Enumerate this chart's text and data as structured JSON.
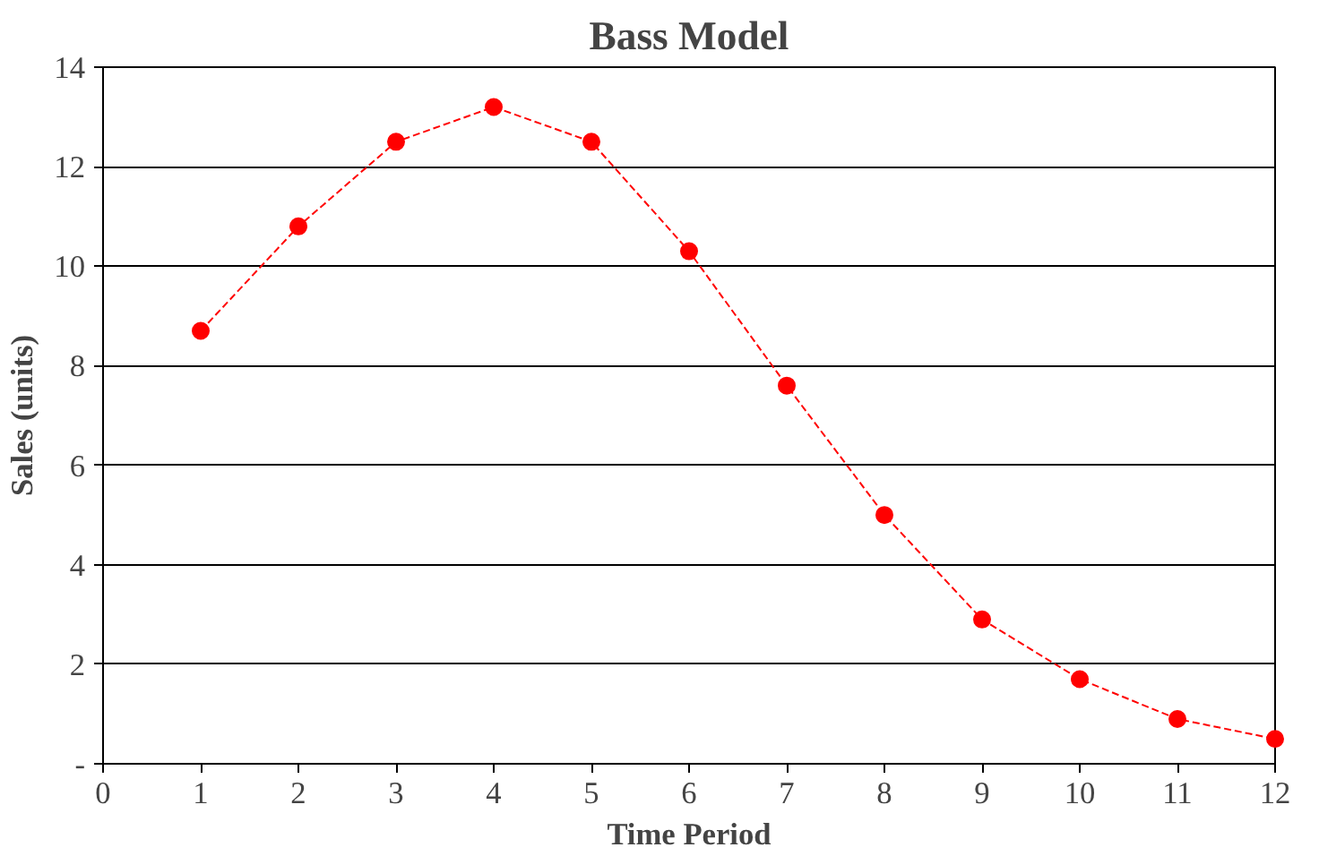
{
  "chart_data": {
    "type": "line",
    "title": "Bass Model",
    "xlabel": "Time Period",
    "ylabel": "Sales (units)",
    "x": [
      1,
      2,
      3,
      4,
      5,
      6,
      7,
      8,
      9,
      10,
      11,
      12
    ],
    "series": [
      {
        "color": "#ff0000",
        "values": [
          8.7,
          10.8,
          12.5,
          13.2,
          12.5,
          10.3,
          7.6,
          5.0,
          2.9,
          1.7,
          0.9,
          0.5
        ]
      }
    ],
    "xlim": [
      0,
      12
    ],
    "xticks": [
      0,
      1,
      2,
      3,
      4,
      5,
      6,
      7,
      8,
      9,
      10,
      11,
      12
    ],
    "ylim": [
      0,
      14
    ],
    "yticks": [
      {
        "value": 0,
        "label": "-"
      },
      2,
      4,
      6,
      8,
      10,
      12,
      14
    ],
    "grid": "y",
    "marker": "circle",
    "line_style": "dashed"
  }
}
